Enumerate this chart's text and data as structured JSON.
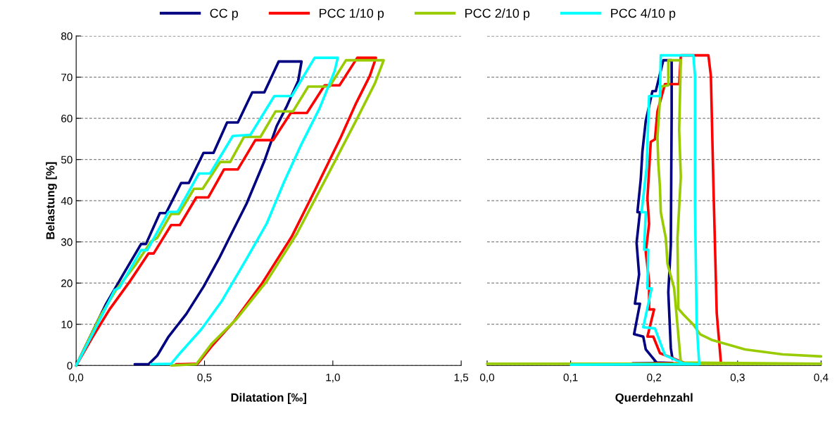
{
  "chart_data": [
    {
      "type": "line",
      "xlabel": "Dilatation [‰]",
      "ylabel": "Belastung [%]",
      "xlim": [
        0,
        1.5
      ],
      "ylim": [
        0,
        80
      ],
      "xticks": [
        {
          "value": 0,
          "label": "0,0"
        },
        {
          "value": 0.5,
          "label": "0,5"
        },
        {
          "value": 1.0,
          "label": "1,0"
        },
        {
          "value": 1.5,
          "label": "1,5"
        }
      ],
      "yticks": [
        0,
        10,
        20,
        30,
        40,
        50,
        60,
        70,
        80
      ],
      "grid": "y",
      "legend": "top",
      "line_style": "solid",
      "marker": "none",
      "series": [
        {
          "name": "CC p",
          "color": "#000080",
          "x": [
            0,
            0.116,
            0.184,
            0.253,
            0.272,
            0.326,
            0.35,
            0.409,
            0.439,
            0.496,
            0.535,
            0.588,
            0.63,
            0.686,
            0.733,
            0.789,
            0.878,
            0.865,
            0.821,
            0.781,
            0.733,
            0.664,
            0.605,
            0.556,
            0.497,
            0.429,
            0.36,
            0.316,
            0.282,
            0.228
          ],
          "values": [
            0,
            14.9,
            22.2,
            29.5,
            29.5,
            37,
            37,
            44.3,
            44.3,
            51.6,
            51.6,
            59,
            59,
            66.3,
            66.3,
            73.8,
            73.8,
            69.1,
            63,
            58.1,
            49.6,
            39.3,
            32,
            25.9,
            19.2,
            12.5,
            7,
            2.4,
            0.3,
            0.3
          ]
        },
        {
          "name": "PCC 1/10 p",
          "color": "#ff0000",
          "x": [
            0,
            0.062,
            0.13,
            0.209,
            0.282,
            0.302,
            0.37,
            0.404,
            0.468,
            0.515,
            0.576,
            0.63,
            0.698,
            0.767,
            0.836,
            0.899,
            0.968,
            1.026,
            1.095,
            1.168,
            1.144,
            1.09,
            1.031,
            0.933,
            0.84,
            0.723,
            0.615,
            0.527,
            0.473,
            0.389
          ],
          "values": [
            0,
            6.7,
            13.6,
            20.4,
            27.2,
            27.2,
            34.1,
            34.1,
            40.8,
            40.8,
            47.6,
            47.6,
            54.7,
            54.7,
            61.3,
            61.3,
            68,
            68,
            74.7,
            74.7,
            70.3,
            63.6,
            55.4,
            42.9,
            31.3,
            19.8,
            10.7,
            4.6,
            0.4,
            0.3
          ]
        },
        {
          "name": "PCC 2/10 p",
          "color": "#99cc00",
          "x": [
            0,
            0.096,
            0.155,
            0.233,
            0.292,
            0.316,
            0.37,
            0.4,
            0.459,
            0.493,
            0.561,
            0.6,
            0.654,
            0.718,
            0.777,
            0.845,
            0.904,
            0.987,
            1.051,
            1.198,
            1.164,
            1.095,
            0.978,
            0.86,
            0.742,
            0.625,
            0.527,
            0.468,
            0.37
          ],
          "values": [
            0,
            12.2,
            18.3,
            24.6,
            30.1,
            31,
            36.8,
            36.8,
            42.9,
            42.9,
            49.4,
            49.4,
            55.5,
            55.5,
            61.7,
            61.7,
            67.7,
            67.7,
            74.1,
            74.1,
            68.5,
            60,
            46,
            32,
            20.4,
            11.3,
            5.2,
            0.3,
            0
          ]
        },
        {
          "name": "PCC 4/10 p",
          "color": "#00ffff",
          "x": [
            0,
            0.076,
            0.15,
            0.169,
            0.253,
            0.277,
            0.36,
            0.395,
            0.478,
            0.522,
            0.61,
            0.679,
            0.772,
            0.84,
            0.929,
            1.019,
            1.007,
            0.948,
            0.879,
            0.811,
            0.742,
            0.664,
            0.566,
            0.488,
            0.409,
            0.37,
            0.292
          ],
          "values": [
            0,
            9.1,
            18.3,
            18.9,
            28,
            28,
            37.3,
            37.3,
            46.6,
            46.6,
            55.7,
            56,
            65.4,
            65.4,
            74.7,
            74.7,
            71.5,
            62.4,
            53.9,
            44.7,
            34.4,
            25.9,
            15.5,
            8.8,
            3.3,
            0.4,
            0.3
          ]
        }
      ]
    },
    {
      "type": "line",
      "xlabel": "Querdehnzahl",
      "xlim": [
        0,
        0.4
      ],
      "ylim": [
        0,
        80
      ],
      "xticks": [
        {
          "value": 0,
          "label": "0,0"
        },
        {
          "value": 0.1,
          "label": "0,1"
        },
        {
          "value": 0.2,
          "label": "0,2"
        },
        {
          "value": 0.3,
          "label": "0,3"
        },
        {
          "value": 0.4,
          "label": "0,4"
        }
      ],
      "yticks": [
        0,
        10,
        20,
        30,
        40,
        50,
        60,
        70,
        80
      ],
      "tick_labels": "x",
      "grid": "y",
      "line_style": "solid",
      "marker": "none",
      "series": [
        {
          "color": "#000080",
          "x": [
            0.174,
            0.222,
            0.203,
            0.19,
            0.187,
            0.176,
            0.183,
            0.177,
            0.182,
            0.179,
            0.183,
            0.18,
            0.184,
            0.186,
            0.19,
            0.198,
            0.202,
            0.211,
            0.221,
            0.221,
            0.22,
            0.217,
            0.22,
            0.222
          ],
          "values": [
            0.5,
            0.6,
            0.7,
            3.9,
            7,
            7.6,
            15,
            15,
            22.1,
            29.8,
            37.2,
            37.2,
            45.2,
            52,
            59.4,
            66.6,
            66.6,
            74.1,
            74.1,
            61.1,
            29.2,
            17.8,
            4.2,
            1.6
          ]
        },
        {
          "color": "#ff0000",
          "x": [
            0.2,
            0.28,
            0.238,
            0.207,
            0.199,
            0.192,
            0.2,
            0.194,
            0.194,
            0.19,
            0.194,
            0.192,
            0.196,
            0.201,
            0.204,
            0.213,
            0.23,
            0.232,
            0.265,
            0.268,
            0.271,
            0.275,
            0.28
          ],
          "values": [
            0.5,
            0.6,
            0.5,
            3,
            7,
            7,
            13.6,
            13.6,
            20.4,
            27.5,
            34.4,
            40.6,
            54.3,
            54.9,
            61.7,
            68.3,
            68.3,
            75.3,
            75.3,
            70.3,
            44,
            12.7,
            0.7
          ]
        },
        {
          "color": "#99cc00",
          "x": [
            0,
            0.4,
            0.232,
            0.224,
            0.216,
            0.214,
            0.208,
            0.207,
            0.205,
            0.204,
            0.208,
            0.217,
            0.217,
            0.232,
            0.23,
            0.232,
            0.228,
            0.229,
            0.235,
            0.247,
            0.255,
            0.269,
            0.309,
            0.354,
            0.4
          ],
          "values": [
            0.4,
            0.4,
            0.7,
            18.7,
            24.7,
            30.9,
            37.2,
            43.2,
            49.2,
            55.4,
            67.7,
            68,
            74.1,
            74.1,
            57.2,
            45.8,
            30.9,
            13.8,
            12.4,
            9.9,
            7.6,
            6.2,
            3.9,
            2.7,
            2.2
          ]
        },
        {
          "color": "#00ffff",
          "x": [
            0.1,
            0.254,
            0.235,
            0.213,
            0.201,
            0.187,
            0.197,
            0.192,
            0.193,
            0.188,
            0.19,
            0.185,
            0.191,
            0.194,
            0.207,
            0.208,
            0.247,
            0.249,
            0.249,
            0.251,
            0.254
          ],
          "values": [
            0.2,
            0.3,
            0.5,
            2.5,
            9,
            9.3,
            18.7,
            18.7,
            28.1,
            28.1,
            37.2,
            37.2,
            48,
            65.4,
            65.4,
            75.3,
            75.3,
            70.3,
            38.3,
            9.9,
            0.5
          ]
        }
      ]
    }
  ]
}
